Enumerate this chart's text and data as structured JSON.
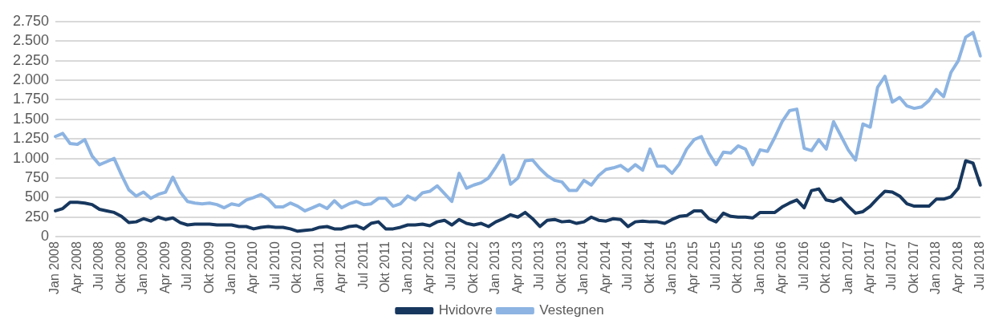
{
  "chart_data": {
    "type": "line",
    "categories": [
      "Jan 2008",
      null,
      null,
      "Apr 2008",
      null,
      null,
      "Jul 2008",
      null,
      null,
      "Okt 2008",
      null,
      null,
      "Jan 2009",
      null,
      null,
      "Apr 2009",
      null,
      null,
      "Jul 2009",
      null,
      null,
      "Okt 2009",
      null,
      null,
      "Jan 2010",
      null,
      null,
      "Apr 2010",
      null,
      null,
      "Jul 2010",
      null,
      null,
      "Okt 2010",
      null,
      null,
      "Jan 2011",
      null,
      null,
      "Apr 2011",
      null,
      null,
      "Jul 2011",
      null,
      null,
      "Okt 2011",
      null,
      null,
      "Jan 2012",
      null,
      null,
      "Apr 2012",
      null,
      null,
      "Jul 2012",
      null,
      null,
      "Okt 2012",
      null,
      null,
      "Jan 2013",
      null,
      null,
      "Apr 2013",
      null,
      null,
      "Jul 2013",
      null,
      null,
      "Okt 2013",
      null,
      null,
      "Jan 2014",
      null,
      null,
      "Apr 2014",
      null,
      null,
      "Jul 2014",
      null,
      null,
      "Okt 2014",
      null,
      null,
      "Jan 2015",
      null,
      null,
      "Apr 2015",
      null,
      null,
      "Jul 2015",
      null,
      null,
      "Okt 2015",
      null,
      null,
      "Jan 2016",
      null,
      null,
      "Apr 2016",
      null,
      null,
      "Jul 2016",
      null,
      null,
      "Okt 2016",
      null,
      null,
      "Jan 2017",
      null,
      null,
      "Apr 2017",
      null,
      null,
      "Jul 2017",
      null,
      null,
      "Okt 2017",
      null,
      null,
      "Jan 2018",
      null,
      null,
      "Apr 2018",
      null,
      null,
      "Jul 2018"
    ],
    "series": [
      {
        "name": "Hvidovre",
        "color": "#17375e",
        "values": [
          330,
          360,
          440,
          440,
          430,
          410,
          350,
          330,
          310,
          260,
          180,
          190,
          230,
          200,
          250,
          220,
          240,
          180,
          150,
          160,
          160,
          160,
          150,
          150,
          150,
          130,
          130,
          100,
          120,
          130,
          120,
          120,
          100,
          70,
          80,
          90,
          120,
          130,
          100,
          100,
          130,
          140,
          100,
          170,
          190,
          100,
          100,
          120,
          150,
          150,
          160,
          140,
          190,
          210,
          150,
          220,
          170,
          150,
          170,
          130,
          190,
          230,
          280,
          250,
          310,
          230,
          130,
          210,
          220,
          190,
          200,
          170,
          190,
          250,
          210,
          200,
          230,
          220,
          130,
          190,
          200,
          190,
          190,
          170,
          220,
          260,
          270,
          330,
          330,
          230,
          190,
          300,
          260,
          250,
          250,
          240,
          310,
          310,
          310,
          380,
          430,
          470,
          370,
          590,
          610,
          470,
          450,
          490,
          390,
          300,
          320,
          390,
          490,
          580,
          570,
          520,
          420,
          390,
          390,
          390,
          480,
          480,
          510,
          620,
          970,
          940,
          660
        ]
      },
      {
        "name": "Vestegnen",
        "color": "#8db4e2",
        "values": [
          1280,
          1320,
          1190,
          1180,
          1240,
          1030,
          920,
          960,
          1000,
          790,
          600,
          520,
          570,
          490,
          540,
          570,
          760,
          570,
          450,
          430,
          420,
          430,
          410,
          370,
          420,
          400,
          470,
          500,
          540,
          480,
          380,
          380,
          430,
          390,
          330,
          370,
          410,
          360,
          460,
          370,
          420,
          450,
          410,
          420,
          490,
          490,
          390,
          420,
          520,
          470,
          560,
          580,
          650,
          550,
          450,
          810,
          620,
          660,
          690,
          750,
          890,
          1040,
          670,
          750,
          970,
          980,
          870,
          780,
          720,
          700,
          590,
          590,
          720,
          660,
          780,
          860,
          880,
          910,
          840,
          920,
          850,
          1120,
          900,
          900,
          810,
          930,
          1120,
          1240,
          1280,
          1070,
          920,
          1080,
          1070,
          1160,
          1120,
          920,
          1110,
          1090,
          1270,
          1470,
          1610,
          1630,
          1130,
          1100,
          1240,
          1120,
          1470,
          1290,
          1110,
          980,
          1440,
          1400,
          1910,
          2050,
          1720,
          1780,
          1670,
          1640,
          1660,
          1740,
          1880,
          1790,
          2100,
          2250,
          2550,
          2610,
          2310
        ]
      }
    ],
    "ylim": [
      0,
      2750
    ],
    "yticks": [
      0,
      250,
      500,
      750,
      {
        "value": 1000,
        "label": "1.000"
      },
      {
        "value": 1250,
        "label": "1.250"
      },
      {
        "value": 1500,
        "label": "1.500"
      },
      {
        "value": 1750,
        "label": "1.750"
      },
      {
        "value": 2000,
        "label": "2.000"
      },
      {
        "value": 2250,
        "label": "2.250"
      },
      {
        "value": 2500,
        "label": "2.500"
      },
      {
        "value": 2750,
        "label": "2.750"
      }
    ],
    "grid": "y",
    "legend": "bottom",
    "marker": "none",
    "line_style": "solid"
  }
}
